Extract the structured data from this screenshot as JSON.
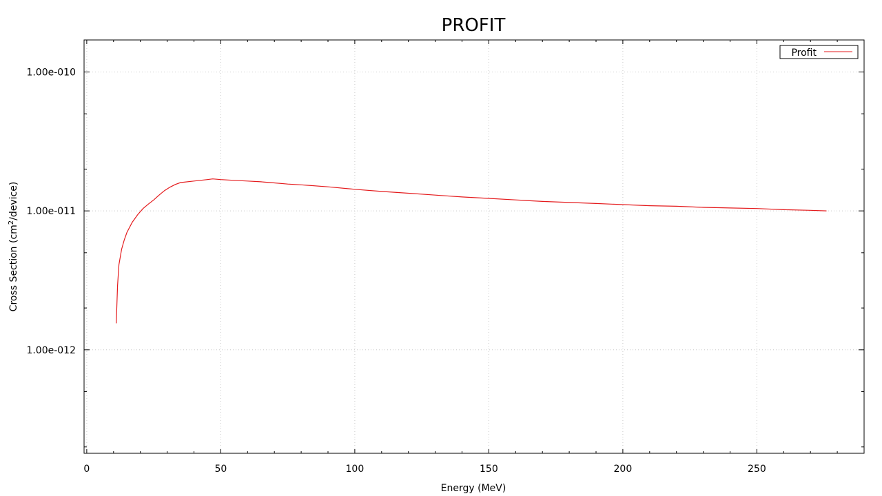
{
  "chart_data": {
    "type": "line",
    "title": "PROFIT",
    "xlabel": "Energy (MeV)",
    "ylabel_main": "Cross Section (cm",
    "ylabel_sup": "2",
    "ylabel_tail": "/device)",
    "xlim": [
      -1,
      290
    ],
    "ylim": [
      1.8e-13,
      1.7e-10
    ],
    "yscale": "log",
    "grid": true,
    "legend_position": "top-right",
    "x_ticks": [
      0,
      50,
      100,
      150,
      200,
      250
    ],
    "x_tick_labels": [
      "0",
      "50",
      "100",
      "150",
      "200",
      "250"
    ],
    "y_ticks": [
      1e-10,
      1e-11,
      1e-12
    ],
    "y_tick_labels": [
      "1.00e-010",
      "1.00e-011",
      "1.00e-012"
    ],
    "series": [
      {
        "name": "Profit",
        "color": "#e41a1c",
        "x": [
          11,
          11.5,
          12,
          13,
          14,
          15,
          17,
          19,
          21,
          23,
          25,
          27,
          29,
          31,
          33,
          35,
          40,
          45,
          47,
          50,
          55,
          60,
          65,
          70,
          75,
          80,
          82,
          90,
          100,
          110,
          120,
          130,
          140,
          150,
          160,
          170,
          180,
          190,
          200,
          210,
          220,
          230,
          240,
          250,
          260,
          270,
          276
        ],
        "y": [
          1.55e-12,
          2.9e-12,
          4.1e-12,
          5.3e-12,
          6.2e-12,
          7e-12,
          8.3e-12,
          9.4e-12,
          1.04e-11,
          1.12e-11,
          1.2e-11,
          1.3e-11,
          1.4e-11,
          1.48e-11,
          1.55e-11,
          1.6e-11,
          1.64e-11,
          1.68e-11,
          1.7e-11,
          1.68e-11,
          1.66e-11,
          1.64e-11,
          1.62e-11,
          1.59e-11,
          1.56e-11,
          1.54e-11,
          1.53e-11,
          1.49e-11,
          1.43e-11,
          1.38e-11,
          1.34e-11,
          1.3e-11,
          1.26e-11,
          1.23e-11,
          1.2e-11,
          1.17e-11,
          1.15e-11,
          1.13e-11,
          1.11e-11,
          1.09e-11,
          1.08e-11,
          1.06e-11,
          1.05e-11,
          1.04e-11,
          1.02e-11,
          1.01e-11,
          1e-11
        ]
      }
    ]
  }
}
